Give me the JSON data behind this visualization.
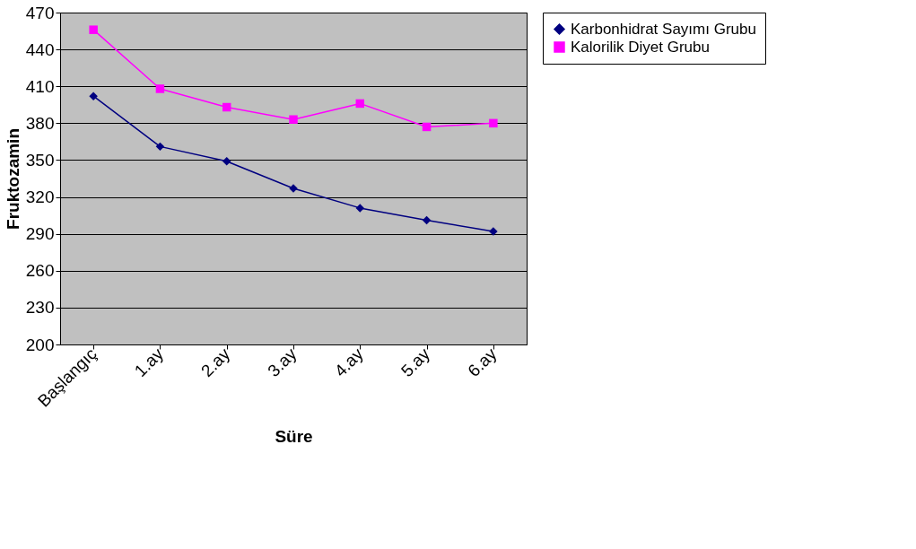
{
  "chart_data": {
    "type": "line",
    "xlabel": "Süre",
    "ylabel": "Fruktozamin",
    "categories": [
      "Başlangıç",
      "1.ay",
      "2.ay",
      "3.ay",
      "4.ay",
      "5.ay",
      "6.ay"
    ],
    "series": [
      {
        "name": "Karbonhidrat Sayımı Grubu",
        "color": "#000080",
        "marker": "diamond",
        "values": [
          402,
          361,
          349,
          327,
          311,
          301,
          292
        ]
      },
      {
        "name": "Kalorilik Diyet Grubu",
        "color": "#ff00ff",
        "marker": "square",
        "values": [
          456,
          408,
          393,
          383,
          396,
          377,
          380
        ]
      }
    ],
    "ylim": [
      200,
      470
    ],
    "yticks": [
      200,
      230,
      260,
      290,
      320,
      350,
      380,
      410,
      440,
      470
    ],
    "grid": "y",
    "legend": "right",
    "line_style": "solid"
  }
}
